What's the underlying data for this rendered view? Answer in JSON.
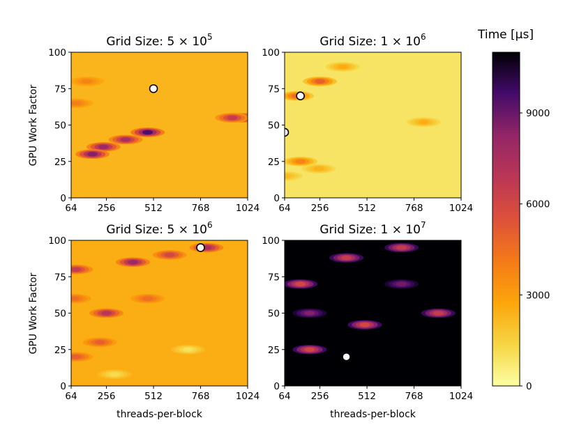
{
  "chart_data": {
    "type": "heatmap",
    "x_label": "threads-per-block",
    "y_label": "GPU Work Factor",
    "x_ticks": [
      64,
      256,
      512,
      768,
      1024
    ],
    "y_ticks": [
      0,
      25,
      50,
      75,
      100
    ],
    "xlim": [
      64,
      1024
    ],
    "ylim": [
      0,
      100
    ],
    "panels": [
      {
        "title_prefix": "Grid Size: ",
        "title_mantissa": "5",
        "title_times": "×",
        "title_base": "10",
        "title_exp": "5",
        "background_time_us": 2300,
        "hotspots": [
          {
            "x": 480,
            "y": 45,
            "time_us": 9500
          },
          {
            "x": 360,
            "y": 40,
            "time_us": 7500
          },
          {
            "x": 240,
            "y": 35,
            "time_us": 8000
          },
          {
            "x": 180,
            "y": 30,
            "time_us": 8500
          },
          {
            "x": 1000,
            "y": 55,
            "time_us": 8000
          },
          {
            "x": 940,
            "y": 55,
            "time_us": 6500
          },
          {
            "x": 150,
            "y": 80,
            "time_us": 3800
          },
          {
            "x": 90,
            "y": 65,
            "time_us": 4000
          }
        ],
        "optimum": {
          "x": 512,
          "y": 75
        }
      },
      {
        "title_prefix": "Grid Size: ",
        "title_mantissa": "1",
        "title_times": "×",
        "title_base": "10",
        "title_exp": "6",
        "background_time_us": 900,
        "hotspots": [
          {
            "x": 256,
            "y": 80,
            "time_us": 5000
          },
          {
            "x": 130,
            "y": 70,
            "time_us": 4500
          },
          {
            "x": 150,
            "y": 25,
            "time_us": 3800
          },
          {
            "x": 380,
            "y": 90,
            "time_us": 2600
          },
          {
            "x": 820,
            "y": 52,
            "time_us": 2500
          },
          {
            "x": 250,
            "y": 20,
            "time_us": 2400
          },
          {
            "x": 70,
            "y": 15,
            "time_us": 2200
          }
        ],
        "optimum": {
          "x": 150,
          "y": 70,
          "x_alt": 64,
          "y_alt": 45
        }
      },
      {
        "title_prefix": "Grid Size: ",
        "title_mantissa": "5",
        "title_times": "×",
        "title_base": "10",
        "title_exp": "6",
        "background_time_us": 2500,
        "hotspots": [
          {
            "x": 400,
            "y": 85,
            "time_us": 8000
          },
          {
            "x": 600,
            "y": 90,
            "time_us": 6000
          },
          {
            "x": 800,
            "y": 95,
            "time_us": 7500
          },
          {
            "x": 256,
            "y": 50,
            "time_us": 7000
          },
          {
            "x": 480,
            "y": 60,
            "time_us": 4500
          },
          {
            "x": 220,
            "y": 30,
            "time_us": 5000
          },
          {
            "x": 90,
            "y": 80,
            "time_us": 6500
          },
          {
            "x": 80,
            "y": 60,
            "time_us": 4500
          },
          {
            "x": 90,
            "y": 20,
            "time_us": 5000
          },
          {
            "x": 700,
            "y": 25,
            "time_us": 1000
          },
          {
            "x": 300,
            "y": 8,
            "time_us": 1200
          }
        ],
        "optimum": {
          "x": 768,
          "y": 95
        }
      },
      {
        "title_prefix": "Grid Size: ",
        "title_mantissa": "1",
        "title_times": "×",
        "title_base": "10",
        "title_exp": "7",
        "background_time_us": 11000,
        "hotspots": [
          {
            "x": 150,
            "y": 70,
            "time_us": 6000
          },
          {
            "x": 400,
            "y": 88,
            "time_us": 6500
          },
          {
            "x": 700,
            "y": 95,
            "time_us": 6500
          },
          {
            "x": 200,
            "y": 25,
            "time_us": 6000
          },
          {
            "x": 500,
            "y": 42,
            "time_us": 6000
          },
          {
            "x": 900,
            "y": 50,
            "time_us": 6500
          },
          {
            "x": 700,
            "y": 70,
            "time_us": 8800
          },
          {
            "x": 200,
            "y": 50,
            "time_us": 8500
          }
        ],
        "optimum": {
          "x": 400,
          "y": 20
        }
      }
    ],
    "colorbar": {
      "title": "Time [μs]",
      "colormap": "inferno_r",
      "min": 0,
      "max": 11000,
      "ticks": [
        0,
        3000,
        6000,
        9000
      ]
    }
  }
}
